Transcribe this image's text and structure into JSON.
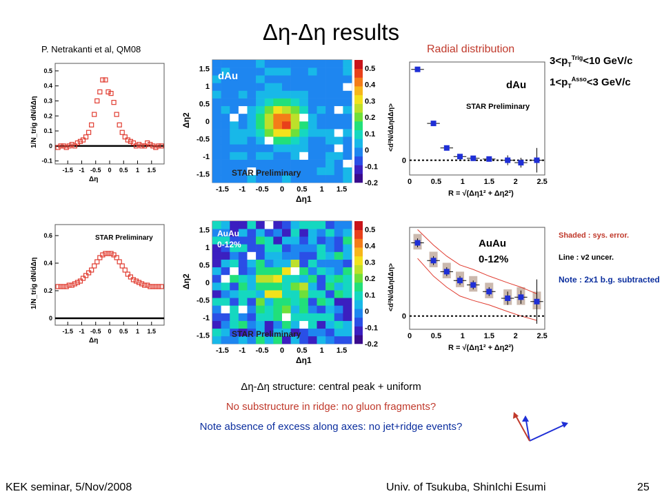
{
  "slide": {
    "title": "Δη-Δη results",
    "citation": "P.  Netrakanti et al, QM08",
    "radial_title": "Radial distribution",
    "cut_trig": "3<p_T^Trig<10 GeV/c",
    "cut_trig_pre": "3<p",
    "cut_trig_sub": "T",
    "cut_trig_sup": "Trig",
    "cut_trig_post": "<10 GeV/c",
    "cut_asso_pre": "1<p",
    "cut_asso_sub": "T",
    "cut_asso_sup": "Asso",
    "cut_asso_post": "<3  GeV/c",
    "note_shaded": "Shaded : sys. error.",
    "note_line": "Line  : v2 uncer.",
    "note_bg": "Note : 2x1 b.g. subtracted",
    "summary1": "Δη-Δη structure: central peak + uniform",
    "summary2": "No substructure in ridge: no gluon fragments?",
    "summary3": "Note absence of excess along axes: no jet+ridge events?",
    "footer_left": "KEK seminar, 5/Nov/2008",
    "footer_center": "Univ. of Tsukuba, ShinIchi Esumi",
    "footer_page": "25"
  },
  "labels": {
    "star_preliminary": "STAR Preliminary",
    "dau": "dAu",
    "auau": "AuAu",
    "centrality": "0-12%",
    "proj_ylabel": "1/N_trig dN/dΔη",
    "proj_xlabel": "Δη",
    "map_xlabel": "Δη1",
    "map_ylabel": "Δη2",
    "radial_ylabel": "<d²N/dΔηdΔη>",
    "radial_xlabel": "R = √(Δη1² + Δη2²)"
  },
  "colors": {
    "red_marker": "#e03a2e",
    "blue_marker": "#1f2fd6",
    "band": "#cbb9ae",
    "red_text": "#c0392b",
    "blue_text": "#0b2e9e"
  },
  "chart_data": [
    {
      "type": "scatter",
      "name": "dAu Δη projection",
      "x": [
        -1.85,
        -1.75,
        -1.65,
        -1.55,
        -1.45,
        -1.35,
        -1.25,
        -1.15,
        -1.05,
        -0.95,
        -0.85,
        -0.75,
        -0.65,
        -0.55,
        -0.45,
        -0.35,
        -0.25,
        -0.15,
        -0.05,
        0.05,
        0.15,
        0.25,
        0.35,
        0.45,
        0.55,
        0.65,
        0.75,
        0.85,
        0.95,
        1.05,
        1.15,
        1.25,
        1.35,
        1.45,
        1.55,
        1.65,
        1.75,
        1.85
      ],
      "y": [
        -0.01,
        0.0,
        0.0,
        -0.01,
        0.0,
        0.01,
        0.0,
        0.02,
        0.03,
        0.04,
        0.06,
        0.09,
        0.14,
        0.21,
        0.3,
        0.36,
        0.44,
        0.44,
        0.36,
        0.35,
        0.29,
        0.21,
        0.14,
        0.09,
        0.06,
        0.04,
        0.03,
        0.02,
        0.0,
        0.01,
        0.0,
        0.0,
        0.02,
        0.01,
        0.0,
        -0.01,
        0.0,
        0.0
      ],
      "xlim": [
        -1.95,
        1.95
      ],
      "ylim": [
        -0.12,
        0.55
      ],
      "xticks": [
        -1.5,
        -1,
        -0.5,
        0,
        0.5,
        1,
        1.5
      ],
      "xtick_labels": [
        "-1.5",
        "-1",
        "-0.5",
        "0",
        "0.5",
        "1",
        "1.5"
      ],
      "yticks": [
        -0.1,
        0,
        0.1,
        0.2,
        0.3,
        0.4,
        0.5
      ],
      "ytick_labels": [
        "-0.1",
        "0",
        "0.1",
        "0.2",
        "0.3",
        "0.4",
        "0.5"
      ],
      "ylabel": "1/N_trig dN/dΔη",
      "xlabel": "Δη"
    },
    {
      "type": "scatter",
      "name": "AuAu Δη projection",
      "x": [
        -1.85,
        -1.75,
        -1.65,
        -1.55,
        -1.45,
        -1.35,
        -1.25,
        -1.15,
        -1.05,
        -0.95,
        -0.85,
        -0.75,
        -0.65,
        -0.55,
        -0.45,
        -0.35,
        -0.25,
        -0.15,
        -0.05,
        0.05,
        0.15,
        0.25,
        0.35,
        0.45,
        0.55,
        0.65,
        0.75,
        0.85,
        0.95,
        1.05,
        1.15,
        1.25,
        1.35,
        1.45,
        1.55,
        1.65,
        1.75,
        1.85
      ],
      "y": [
        0.23,
        0.23,
        0.23,
        0.23,
        0.24,
        0.24,
        0.25,
        0.26,
        0.27,
        0.29,
        0.31,
        0.33,
        0.35,
        0.38,
        0.41,
        0.44,
        0.46,
        0.47,
        0.47,
        0.47,
        0.46,
        0.44,
        0.41,
        0.38,
        0.35,
        0.32,
        0.3,
        0.28,
        0.27,
        0.26,
        0.25,
        0.24,
        0.24,
        0.23,
        0.23,
        0.23,
        0.23,
        0.23
      ],
      "xlim": [
        -1.95,
        1.95
      ],
      "ylim": [
        -0.05,
        0.68
      ],
      "xticks": [
        -1.5,
        -1,
        -0.5,
        0,
        0.5,
        1,
        1.5
      ],
      "xtick_labels": [
        "-1.5",
        "-1",
        "-0.5",
        "0",
        "0.5",
        "1",
        "1.5"
      ],
      "yticks": [
        0,
        0.2,
        0.4,
        0.6
      ],
      "ytick_labels": [
        "0",
        "0.2",
        "0.4",
        "0.6"
      ],
      "ylabel": "1/N_trig dN/dΔη",
      "xlabel": "Δη"
    },
    {
      "type": "heatmap",
      "name": "dAu Δη1-Δη2",
      "n": 16,
      "range": [
        -1.75,
        1.75
      ],
      "zlim": [
        -0.2,
        0.55
      ],
      "peak": 0.48,
      "width": 0.35,
      "noise": 0.03,
      "xticks": [
        -1.5,
        -1,
        -0.5,
        0,
        0.5,
        1,
        1.5
      ],
      "tick_labels": [
        "-1.5",
        "-1",
        "-0.5",
        "0",
        "0.5",
        "1",
        "1.5"
      ],
      "zticks": [
        -0.2,
        -0.1,
        0,
        0.1,
        0.2,
        0.3,
        0.4,
        0.5
      ],
      "ztick_labels": [
        "-0.2",
        "-0.1",
        "0",
        "0.1",
        "0.2",
        "0.3",
        "0.4",
        "0.5"
      ]
    },
    {
      "type": "heatmap",
      "name": "AuAu 0-12% Δη1-Δη2",
      "n": 16,
      "range": [
        -1.75,
        1.75
      ],
      "zlim": [
        -0.2,
        0.55
      ],
      "peak": 0.22,
      "width": 0.55,
      "noise": 0.13,
      "xticks": [
        -1.5,
        -1,
        -0.5,
        0,
        0.5,
        1,
        1.5
      ],
      "tick_labels": [
        "-1.5",
        "-1",
        "-0.5",
        "0",
        "0.5",
        "1",
        "1.5"
      ],
      "zticks": [
        -0.2,
        -0.1,
        0,
        0.1,
        0.2,
        0.3,
        0.4,
        0.5
      ],
      "ztick_labels": [
        "-0.2",
        "-0.1",
        "0",
        "0.1",
        "0.2",
        "0.3",
        "0.4",
        "0.5"
      ]
    },
    {
      "type": "scatter",
      "name": "dAu radial",
      "x": [
        0.15,
        0.45,
        0.7,
        0.95,
        1.2,
        1.5,
        1.85,
        2.1,
        2.4
      ],
      "y": [
        0.37,
        0.15,
        0.05,
        0.015,
        0.008,
        0.005,
        0.0,
        -0.01,
        0.0
      ],
      "xerr": [
        0.12,
        0.12,
        0.12,
        0.12,
        0.12,
        0.12,
        0.12,
        0.12,
        0.12
      ],
      "yerr": [
        0.01,
        0.01,
        0.01,
        0.01,
        0.01,
        0.01,
        0.02,
        0.02,
        0.05
      ],
      "xlim": [
        0,
        2.55
      ],
      "ylim": [
        -0.06,
        0.4
      ],
      "xticks": [
        0,
        0.5,
        1,
        1.5,
        2,
        2.5
      ],
      "xtick_labels": [
        "0",
        "0.5",
        "1",
        "1.5",
        "2",
        "2.5"
      ],
      "yticks": [
        0
      ],
      "ytick_labels": [
        "0"
      ],
      "ylabel": "<d²N/dΔηdΔη>",
      "xlabel": "R = √(Δη1² + Δη2²)"
    },
    {
      "type": "scatter",
      "name": "AuAu 0-12% radial",
      "x": [
        0.15,
        0.45,
        0.7,
        0.95,
        1.2,
        1.5,
        1.85,
        2.1,
        2.4
      ],
      "y": [
        0.33,
        0.25,
        0.2,
        0.16,
        0.14,
        0.11,
        0.08,
        0.085,
        0.065
      ],
      "xerr": [
        0.12,
        0.12,
        0.12,
        0.12,
        0.12,
        0.12,
        0.12,
        0.12,
        0.12
      ],
      "yerr": [
        0.02,
        0.02,
        0.02,
        0.02,
        0.02,
        0.02,
        0.03,
        0.03,
        0.1
      ],
      "sys_low": [
        0.3,
        0.22,
        0.17,
        0.13,
        0.11,
        0.08,
        0.05,
        0.05,
        0.03
      ],
      "sys_high": [
        0.37,
        0.29,
        0.24,
        0.2,
        0.18,
        0.15,
        0.12,
        0.13,
        0.11
      ],
      "line_upper": [
        0.39,
        0.32,
        0.27,
        0.23,
        0.21,
        0.18,
        0.15,
        0.13,
        0.1
      ],
      "line_lower": [
        0.26,
        0.18,
        0.13,
        0.09,
        0.07,
        0.05,
        0.02,
        0.0,
        -0.02
      ],
      "xlim": [
        0,
        2.55
      ],
      "ylim": [
        -0.06,
        0.4
      ],
      "xticks": [
        0,
        0.5,
        1,
        1.5,
        2,
        2.5
      ],
      "xtick_labels": [
        "0",
        "0.5",
        "1",
        "1.5",
        "2",
        "2.5"
      ],
      "yticks": [
        0
      ],
      "ytick_labels": [
        "0"
      ],
      "ylabel": "<d²N/dΔηdΔη>",
      "xlabel": "R = √(Δη1² + Δη2²)"
    }
  ]
}
